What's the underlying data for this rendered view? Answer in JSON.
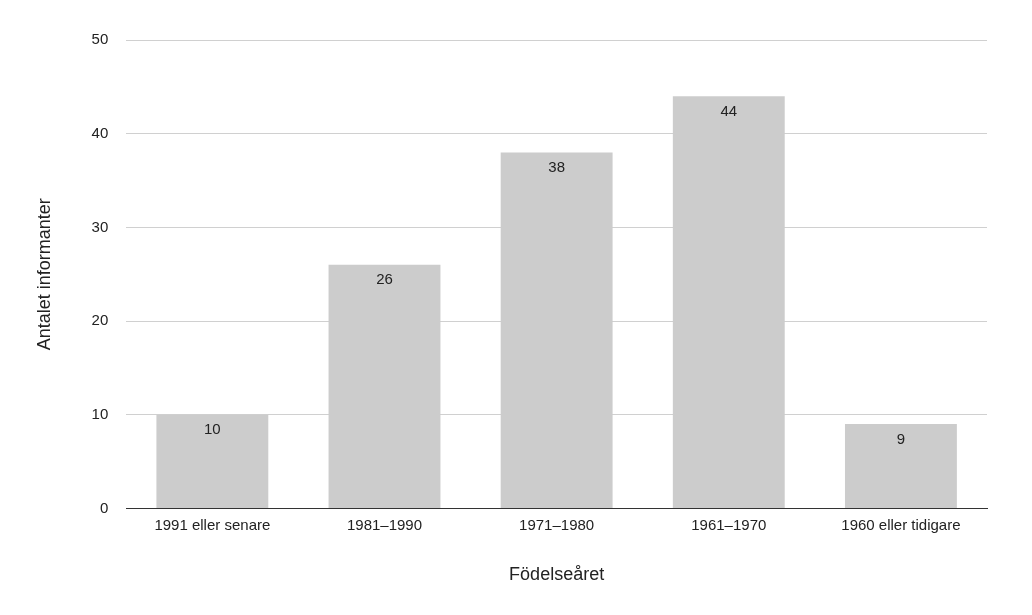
{
  "chart_data": {
    "type": "bar",
    "xlabel": "Födelseåret",
    "ylabel": "Antalet informanter",
    "categories": [
      "1991 eller senare",
      "1981–1990",
      "1971–1980",
      "1961–1970",
      "1960 eller tidigare"
    ],
    "values": [
      10,
      26,
      38,
      44,
      9
    ],
    "color": "#cccccc",
    "ylim": [
      0,
      50
    ],
    "yticks": [
      0,
      10,
      20,
      30,
      40,
      50
    ],
    "grid": "y",
    "data_labels": true
  }
}
